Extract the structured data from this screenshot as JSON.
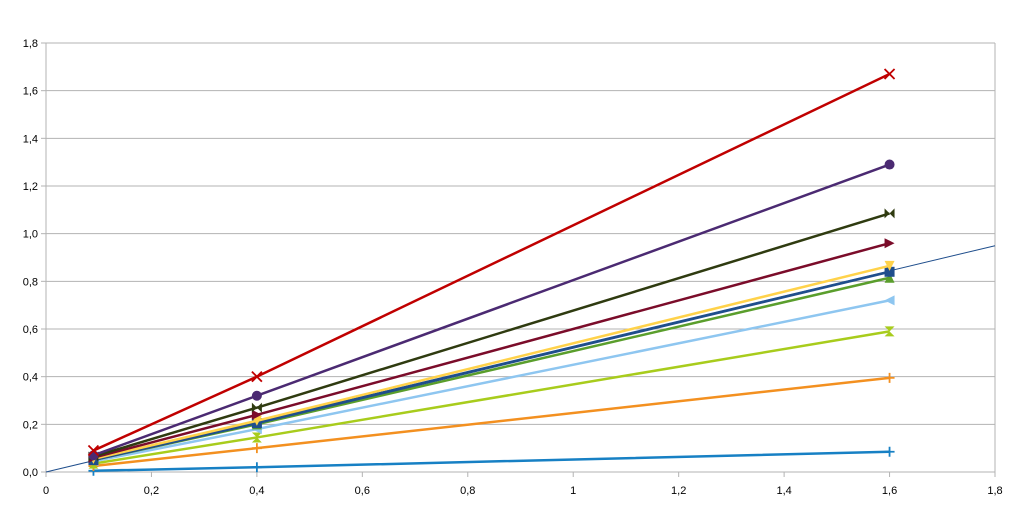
{
  "chart_data": {
    "type": "line",
    "xlim": [
      0,
      1.8
    ],
    "ylim": [
      0,
      1.8
    ],
    "x_ticks": [
      "0",
      "0,2",
      "0,4",
      "0,6",
      "0,8",
      "1",
      "1,2",
      "1,4",
      "1,6",
      "1,8"
    ],
    "y_ticks": [
      "0,0",
      "0,2",
      "0,4",
      "0,6",
      "0,8",
      "1,0",
      "1,2",
      "1,4",
      "1,6",
      "1,8"
    ],
    "grid": "horizontal",
    "legend": "none",
    "x": [
      0.09,
      0.4,
      1.6
    ],
    "series": [
      {
        "values": [
          0.09,
          0.4,
          1.67
        ],
        "color": "#c00000",
        "marker": "x"
      },
      {
        "values": [
          0.07,
          0.32,
          1.29
        ],
        "color": "#4b2a72",
        "marker": "circle"
      },
      {
        "values": [
          0.065,
          0.27,
          1.085
        ],
        "color": "#2f3b10",
        "marker": "bowtie"
      },
      {
        "values": [
          0.06,
          0.24,
          0.96
        ],
        "color": "#7b0c2a",
        "marker": "triangle-right"
      },
      {
        "values": [
          0.055,
          0.215,
          0.865
        ],
        "color": "#ffd24a",
        "marker": "triangle-down"
      },
      {
        "values": [
          0.05,
          0.205,
          0.84
        ],
        "color": "#1f4e8c",
        "marker": "square"
      },
      {
        "values": [
          0.05,
          0.2,
          0.815
        ],
        "color": "#5a9e2c",
        "marker": "triangle-up"
      },
      {
        "values": [
          0.045,
          0.18,
          0.72
        ],
        "color": "#8ec6f0",
        "marker": "triangle-left"
      },
      {
        "values": [
          0.035,
          0.145,
          0.59
        ],
        "color": "#a8cc1c",
        "marker": "hourglass"
      },
      {
        "values": [
          0.025,
          0.1,
          0.395
        ],
        "color": "#f39020",
        "marker": "plus"
      },
      {
        "values": [
          0.005,
          0.02,
          0.085
        ],
        "color": "#1780c4",
        "marker": "plus"
      }
    ],
    "trendline": {
      "slope": 0.5275,
      "intercept": 0,
      "color": "#1f4e8c"
    }
  }
}
